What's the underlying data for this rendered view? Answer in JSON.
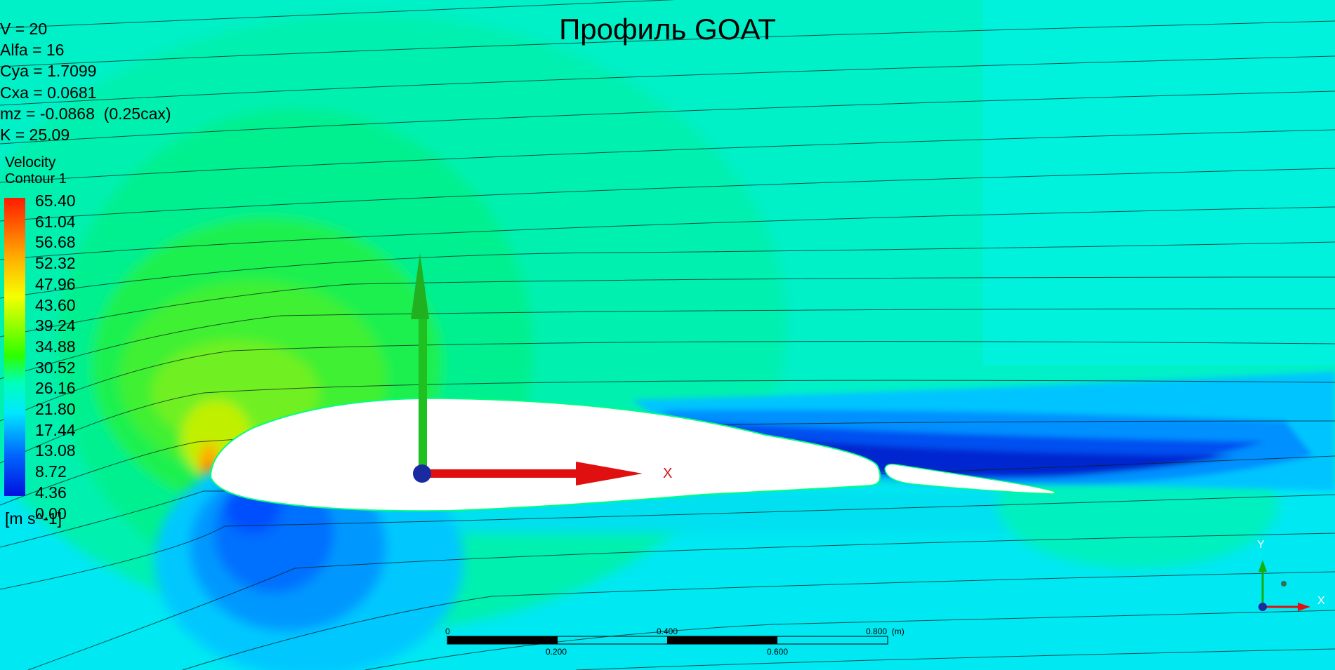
{
  "title": "Профиль GOAT",
  "parameters": [
    "V = 20",
    "Alfa = 16",
    "Cya = 1.7099",
    "Cxa = 0.0681",
    "mz = -0.0868  (0.25cax)",
    "K = 25.09"
  ],
  "legend": {
    "variable": "Velocity",
    "name": "Contour 1",
    "unit": "[m s^-1]",
    "levels": [
      "65.40",
      "61.04",
      "56.68",
      "52.32",
      "47.96",
      "43.60",
      "39.24",
      "34.88",
      "30.52",
      "26.16",
      "21.80",
      "17.44",
      "13.08",
      "8.72",
      "4.36",
      "0.00"
    ],
    "colors": [
      "#ff1a00",
      "#ff4a00",
      "#ff7a00",
      "#ffae00",
      "#ffdd00",
      "#f6ff00",
      "#c2ff00",
      "#7aff00",
      "#2cff00",
      "#00ff58",
      "#00ffba",
      "#00e8ff",
      "#00aaff",
      "#0068ff",
      "#0030ff",
      "#0010e0"
    ]
  },
  "scale_bar": {
    "top_labels": [
      "0",
      "0.400",
      "0.800  (m)"
    ],
    "bottom_labels": [
      "0.200",
      "0.600"
    ]
  },
  "axis_label_x": "X",
  "triad": {
    "x": "X",
    "y": "Y"
  },
  "colors": {
    "freestream": "#00f0c8",
    "lower_surface": "#00e8f0",
    "low_velocity": "#0030e8",
    "airfoil": "#ffffff",
    "lift_arrow": "#20c020",
    "drag_arrow": "#e01010"
  }
}
